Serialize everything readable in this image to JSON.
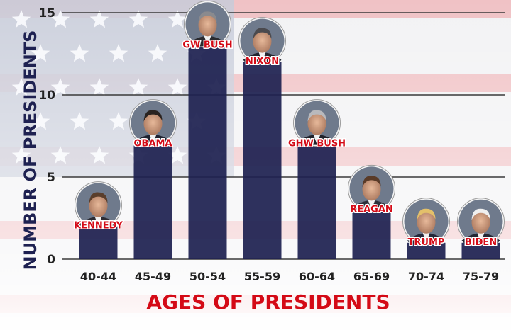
{
  "chart_data": {
    "type": "bar",
    "title": "",
    "xlabel": "AGES OF PRESIDENTS",
    "ylabel": "NUMBER OF PRESIDENTS",
    "ylim": [
      0,
      15
    ],
    "yticks": [
      0,
      5,
      10,
      15
    ],
    "grid": true,
    "categories": [
      "40-44",
      "45-49",
      "50-54",
      "55-59",
      "60-64",
      "65-69",
      "70-74",
      "75-79"
    ],
    "values": [
      2,
      7,
      13,
      12,
      7,
      3,
      1,
      1
    ],
    "bar_color": "#1e2151",
    "annotations": [
      {
        "category": "40-44",
        "label": "KENNEDY"
      },
      {
        "category": "45-49",
        "label": "OBAMA"
      },
      {
        "category": "50-54",
        "label": "GW BUSH"
      },
      {
        "category": "55-59",
        "label": "NIXON"
      },
      {
        "category": "60-64",
        "label": "GHW BUSH"
      },
      {
        "category": "65-69",
        "label": "REAGAN"
      },
      {
        "category": "70-74",
        "label": "TRUMP"
      },
      {
        "category": "75-79",
        "label": "BIDEN"
      }
    ],
    "label_color": "#d40a16",
    "xlabel_color": "#d40a16",
    "ylabel_color": "#1e2151",
    "background": "american-flag"
  }
}
